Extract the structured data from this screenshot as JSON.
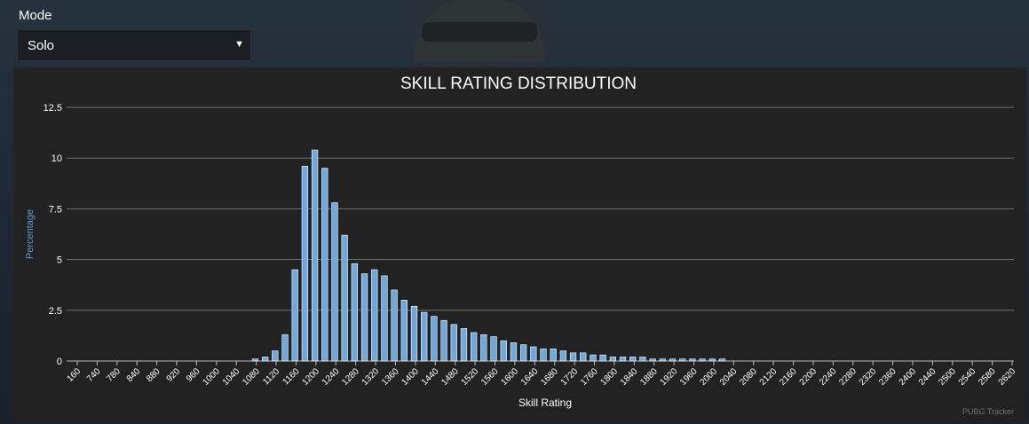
{
  "mode": {
    "label": "Mode",
    "selected": "Solo"
  },
  "watermark": "PUBG Tracker",
  "colors": {
    "bar": "#6fa8dc",
    "axis_label": "#5b9bd5",
    "text": "#ffffff",
    "panel": "#222222",
    "grid": "#707070"
  },
  "chart_data": {
    "type": "bar",
    "title": "SKILL RATING DISTRIBUTION",
    "xlabel": "Skill Rating",
    "ylabel": "Percentage",
    "ylim": [
      0,
      12.5
    ],
    "yticks": [
      0,
      2.5,
      5,
      7.5,
      10,
      12.5
    ],
    "ytick_labels": [
      "0",
      "2.5",
      "5",
      "7.5",
      "10",
      "12.5"
    ],
    "xtick_labels": [
      "160",
      "740",
      "780",
      "840",
      "880",
      "920",
      "960",
      "1000",
      "1040",
      "1080",
      "1120",
      "1160",
      "1200",
      "1240",
      "1280",
      "1320",
      "1360",
      "1400",
      "1440",
      "1480",
      "1520",
      "1560",
      "1600",
      "1640",
      "1680",
      "1720",
      "1760",
      "1800",
      "1840",
      "1880",
      "1920",
      "1960",
      "2000",
      "2040",
      "2080",
      "2120",
      "2160",
      "2200",
      "2240",
      "2280",
      "2320",
      "2360",
      "2400",
      "2440",
      "2500",
      "2540",
      "2580",
      "2620"
    ],
    "categories": [
      "160",
      "700",
      "740",
      "760",
      "780",
      "800",
      "840",
      "860",
      "880",
      "900",
      "920",
      "940",
      "960",
      "980",
      "1000",
      "1020",
      "1040",
      "1060",
      "1080",
      "1100",
      "1120",
      "1140",
      "1160",
      "1180",
      "1200",
      "1220",
      "1240",
      "1260",
      "1280",
      "1300",
      "1320",
      "1340",
      "1360",
      "1380",
      "1400",
      "1420",
      "1440",
      "1460",
      "1480",
      "1500",
      "1520",
      "1540",
      "1560",
      "1580",
      "1600",
      "1620",
      "1640",
      "1660",
      "1680",
      "1700",
      "1720",
      "1740",
      "1760",
      "1780",
      "1800",
      "1820",
      "1840",
      "1860",
      "1880",
      "1900",
      "1920",
      "1940",
      "1960",
      "1980",
      "2000",
      "2020",
      "2040",
      "2060",
      "2080",
      "2100",
      "2120",
      "2140",
      "2160",
      "2180",
      "2200",
      "2220",
      "2240",
      "2260",
      "2280",
      "2300",
      "2320",
      "2340",
      "2360",
      "2380",
      "2400",
      "2420",
      "2440",
      "2460",
      "2500",
      "2520",
      "2540",
      "2560",
      "2580",
      "2600",
      "2620"
    ],
    "values": [
      0,
      0,
      0,
      0,
      0,
      0,
      0,
      0,
      0,
      0,
      0,
      0,
      0,
      0,
      0,
      0,
      0,
      0,
      0.1,
      0.2,
      0.5,
      1.3,
      4.5,
      9.6,
      10.4,
      9.5,
      7.8,
      6.2,
      4.8,
      4.3,
      4.5,
      4.2,
      3.5,
      3.0,
      2.7,
      2.4,
      2.2,
      2.0,
      1.8,
      1.6,
      1.4,
      1.3,
      1.2,
      1.0,
      0.9,
      0.8,
      0.7,
      0.6,
      0.6,
      0.5,
      0.4,
      0.4,
      0.3,
      0.3,
      0.2,
      0.2,
      0.2,
      0.2,
      0.1,
      0.1,
      0.1,
      0.1,
      0.1,
      0.1,
      0.1,
      0.1,
      0,
      0,
      0,
      0,
      0,
      0,
      0,
      0,
      0,
      0,
      0,
      0,
      0,
      0,
      0,
      0,
      0,
      0,
      0,
      0,
      0,
      0,
      0,
      0,
      0,
      0,
      0,
      0,
      0
    ]
  }
}
